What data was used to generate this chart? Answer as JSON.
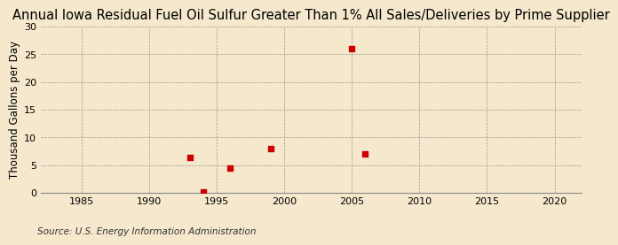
{
  "title": "Annual Iowa Residual Fuel Oil Sulfur Greater Than 1% All Sales/Deliveries by Prime Supplier",
  "ylabel": "Thousand Gallons per Day",
  "source": "Source: U.S. Energy Information Administration",
  "x_data": [
    1993,
    1994,
    1996,
    1999,
    2005,
    2006
  ],
  "y_data": [
    6.3,
    0.1,
    4.5,
    8.0,
    26.0,
    7.0
  ],
  "xlim": [
    1982,
    2022
  ],
  "ylim": [
    0,
    30
  ],
  "xticks": [
    1985,
    1990,
    1995,
    2000,
    2005,
    2010,
    2015,
    2020
  ],
  "yticks": [
    0,
    5,
    10,
    15,
    20,
    25,
    30
  ],
  "marker_color": "#CC0000",
  "marker_size": 25,
  "background_color": "#F5E8CC",
  "plot_bg_color": "#F5E8CC",
  "grid_color": "#999999",
  "title_fontsize": 10.5,
  "label_fontsize": 8.5,
  "tick_fontsize": 8,
  "source_fontsize": 7.5
}
